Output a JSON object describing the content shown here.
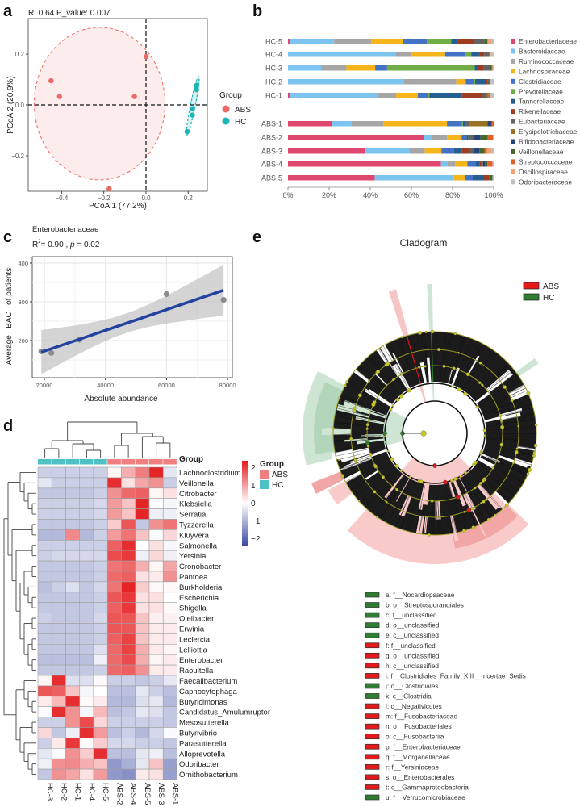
{
  "panels": {
    "a": "a",
    "b": "b",
    "c": "c",
    "d": "d",
    "e": "e"
  },
  "chart_data": [
    {
      "id": "a",
      "type": "scatter",
      "title": "R: 0.64   P_value: 0.007",
      "xlabel": "PCoA 1 (77.2%)",
      "ylabel": "PCoA 2 (20.9%)",
      "xticks": [
        -0.4,
        -0.2,
        0.0,
        0.2
      ],
      "yticks": [
        -0.2,
        0.0,
        0.2
      ],
      "xtick_labels": [
        "−0.4",
        "−0.2",
        "0.0",
        "0.2"
      ],
      "ytick_labels": [
        "−0.2",
        "0.0",
        "0.2"
      ],
      "legend_title": "Group",
      "legend_position": "right",
      "series": [
        {
          "name": "ABS",
          "color": "#ec6a63",
          "points": [
            [
              -0.45,
              0.095
            ],
            [
              -0.41,
              0.033
            ],
            [
              -0.055,
              0.033
            ],
            [
              0.0,
              0.19
            ],
            [
              -0.175,
              -0.33
            ]
          ],
          "ellipse": {
            "cx": -0.22,
            "cy": 0.005,
            "rx": 0.31,
            "ry": 0.3
          }
        },
        {
          "name": "HC",
          "color": "#1cb5b5",
          "points": [
            [
              0.195,
              -0.105
            ],
            [
              0.22,
              -0.04
            ],
            [
              0.22,
              -0.015
            ],
            [
              0.24,
              0.06
            ],
            [
              0.24,
              0.077
            ]
          ]
        }
      ]
    },
    {
      "id": "b",
      "type": "bar",
      "orientation": "horizontal-stacked-percent",
      "categories": [
        "HC-5",
        "HC-4",
        "HC-3",
        "HC-2",
        "HC-1",
        "ABS-1",
        "ABS-2",
        "ABS-3",
        "ABS-4",
        "ABS-5"
      ],
      "xtick_labels": [
        "0%",
        "20%",
        "40%",
        "60%",
        "80%",
        "100%"
      ],
      "legend_position": "right",
      "series": [
        {
          "name": "Enterobacteriaceae",
          "color": "#e0476e",
          "values": [
            1,
            0,
            0,
            0,
            0.9,
            21.3,
            66.3,
            37.3,
            74.4,
            42.2
          ]
        },
        {
          "name": "Bacteroidaceae",
          "color": "#7cc4ef",
          "values": [
            21.4,
            52.3,
            16.1,
            56.2,
            42.7,
            9.4,
            3.7,
            21.7,
            3,
            38.3
          ]
        },
        {
          "name": "Ruminococcaceae",
          "color": "#a6a6a6",
          "values": [
            18,
            7.6,
            12.3,
            25.6,
            9,
            15.6,
            7.3,
            7.5,
            3.8,
            0
          ]
        },
        {
          "name": "Lachnospiraceae",
          "color": "#f5b51b",
          "values": [
            15.3,
            16.5,
            14,
            4.6,
            10.5,
            31,
            7.1,
            8.1,
            6,
            5.6
          ]
        },
        {
          "name": "Clostridiaceae",
          "color": "#4472c4",
          "values": [
            11.8,
            10,
            5.8,
            3.9,
            4.8,
            7.2,
            2.4,
            5.4,
            3.9,
            3.7
          ]
        },
        {
          "name": "Prevotellaceae",
          "color": "#70ad47",
          "values": [
            11.9,
            2.7,
            42.6,
            0.7,
            0.8,
            0.5,
            0,
            0.6,
            0,
            0
          ]
        },
        {
          "name": "Tannerellaceae",
          "color": "#255e91",
          "values": [
            3.3,
            3.8,
            1.6,
            5.4,
            15.7,
            0.9,
            0.8,
            3.8,
            2.1,
            5.5
          ]
        },
        {
          "name": "Rikenellaceae",
          "color": "#9e3d1f",
          "values": [
            7.6,
            2.5,
            2.5,
            0.8,
            10.3,
            0,
            0,
            3.7,
            0.7,
            2.4
          ]
        },
        {
          "name": "Eubacteriaceae",
          "color": "#636363",
          "values": [
            5.1,
            2.6,
            3.4,
            1.3,
            2,
            2.5,
            2.7,
            2.2,
            0.9,
            0
          ]
        },
        {
          "name": "Erysipelotrichaceae",
          "color": "#997323",
          "values": [
            0,
            0,
            0,
            0,
            0.8,
            8.6,
            0,
            0,
            0,
            0
          ]
        },
        {
          "name": "Bifidobacteriaceae",
          "color": "#264478",
          "values": [
            0,
            0,
            0,
            0,
            0,
            2,
            3.3,
            2.7,
            0.9,
            0
          ]
        },
        {
          "name": "Veillonellaceae",
          "color": "#43682b",
          "values": [
            1.6,
            0,
            0.8,
            0,
            0,
            0,
            3.5,
            2.5,
            1.3,
            1.7
          ]
        },
        {
          "name": "Streptococcaceae",
          "color": "#e0622a",
          "values": [
            0,
            0,
            0.3,
            0,
            0.7,
            1,
            2.6,
            1.2,
            2.4,
            0
          ]
        },
        {
          "name": "Oscillospiraceae",
          "color": "#f4a070",
          "values": [
            2,
            0.7,
            0,
            0,
            0,
            0,
            0,
            2.4,
            0,
            0
          ]
        },
        {
          "name": "Odoribacteraceae",
          "color": "#c0c0c0",
          "values": [
            1,
            1.3,
            0.8,
            1.5,
            1.8,
            0,
            0.4,
            1,
            0.6,
            0.6
          ]
        }
      ]
    },
    {
      "id": "c",
      "type": "scatter",
      "title": "Enterobacteriaceae",
      "stat_r2": "R",
      "stat_r2_sup": "2",
      "stat_text": "= 0.90 , ",
      "stat_p": "p",
      "stat_p_text": " = 0.02",
      "xlabel": "Absolute abundance",
      "ylabel": "Average   BAC   of patients",
      "xticks": [
        20000,
        40000,
        60000,
        80000
      ],
      "yticks": [
        200,
        300,
        400
      ],
      "xtick_labels": [
        "20000",
        "40000",
        "60000",
        "80000"
      ],
      "ytick_labels": [
        "200",
        "300",
        "400"
      ],
      "grid": true,
      "points": [
        [
          19000,
          172
        ],
        [
          22300,
          168
        ],
        [
          31500,
          202
        ],
        [
          60000,
          320
        ],
        [
          78700,
          305
        ]
      ],
      "fit": {
        "x": [
          19000,
          78700
        ],
        "y": [
          170,
          330
        ],
        "color": "#2342a0"
      },
      "ci": {
        "x": [
          19000,
          25000,
          31000,
          37000,
          43000,
          49000,
          55000,
          61000,
          67000,
          73000,
          78700
        ],
        "lower": [
          113,
          139,
          164,
          188,
          209,
          225,
          237,
          245,
          252,
          259,
          264
        ],
        "upper": [
          227,
          233,
          240,
          249,
          260,
          276,
          296,
          320,
          345,
          371,
          396
        ]
      }
    },
    {
      "id": "d",
      "type": "heatmap",
      "columns": [
        "HC-3",
        "HC-2",
        "HC-1",
        "HC-4",
        "HC-5",
        "ABS-2",
        "ABS-4",
        "ABS-5",
        "ABS-3",
        "ABS-1"
      ],
      "column_groups": [
        "HC",
        "HC",
        "HC",
        "HC",
        "HC",
        "ABS",
        "ABS",
        "ABS",
        "ABS",
        "ABS"
      ],
      "annotation_label": "Group",
      "legend_title": "Group",
      "groups": [
        {
          "name": "ABS",
          "color": "#f08080"
        },
        {
          "name": "HC",
          "color": "#4fc0c4"
        }
      ],
      "scale_ticks": [
        2,
        1,
        0,
        -1,
        -2
      ],
      "scale_tick_labels": [
        "2",
        "1",
        "0",
        "−1",
        "−2"
      ],
      "colors": {
        "low": "#3a4ba0",
        "mid": "#ffffff",
        "high": "#e41a1c"
      },
      "rows": [
        "Lachnoclostridium",
        "Veillonella",
        "Citrobacter",
        "Klebsiella",
        "Serratia",
        "Tyzzerella",
        "Kluyvera",
        "Salmonella",
        "Yersinia",
        "Cronobacter",
        "Pantoea",
        "Burkholderia",
        "Escherichia",
        "Shigella",
        "Oleibacter",
        "Erwinia",
        "Leclercia",
        "Lelliottia",
        "Enterobacter",
        "Raoultella",
        "Faecalibacterium",
        "Capnocytophaga",
        "Butyricimonas",
        "Candidatus_Amulumruptor",
        "Mesosutterella",
        "Butyrivibrio",
        "Parasutterella",
        "Alloprevotella",
        "Odoribacter",
        "Ornithobacterium"
      ],
      "values": [
        [
          -0.6,
          -0.6,
          -0.6,
          -0.6,
          -0.6,
          0.1,
          0.8,
          1.3,
          2.2,
          -0.3
        ],
        [
          -0.3,
          -0.6,
          -0.6,
          -0.6,
          -0.6,
          2.1,
          0.3,
          0.9,
          1.1,
          -0.6
        ],
        [
          -0.7,
          -0.7,
          -0.7,
          -0.7,
          -0.6,
          1.1,
          1.5,
          1.6,
          0.1,
          0.3
        ],
        [
          -0.6,
          -0.6,
          -0.6,
          -0.6,
          -0.5,
          1.0,
          0.6,
          2.2,
          0,
          -0.1
        ],
        [
          -0.6,
          -0.6,
          -0.6,
          -0.6,
          -0.5,
          1.0,
          0.6,
          2.2,
          -0.2,
          -0.2
        ],
        [
          -0.7,
          -0.7,
          -0.7,
          -0.7,
          -0.6,
          0.5,
          1.7,
          -0.7,
          1.1,
          1.4
        ],
        [
          -0.9,
          -0.9,
          1.2,
          -0.9,
          -0.6,
          1.0,
          1.4,
          0.6,
          -0.05,
          0.4
        ],
        [
          -0.6,
          -0.6,
          -0.6,
          -0.6,
          -0.6,
          1.6,
          2.1,
          0,
          0.3,
          -0.1
        ],
        [
          -0.6,
          -0.5,
          -0.5,
          -0.5,
          -0.5,
          1.8,
          2.0,
          -0.2,
          0.4,
          -0.2
        ],
        [
          -0.7,
          -0.7,
          -0.7,
          -0.7,
          -0.6,
          1.4,
          1.5,
          0.8,
          0.1,
          0.9
        ],
        [
          -0.7,
          -0.7,
          -0.7,
          -0.7,
          -0.6,
          1.5,
          1.6,
          0.3,
          0.2,
          1.1
        ],
        [
          -0.8,
          -0.6,
          -0.4,
          -0.7,
          -0.5,
          1.4,
          2.2,
          0.5,
          0.05,
          0.05
        ],
        [
          -0.7,
          -0.7,
          -0.7,
          -0.7,
          -0.6,
          1.7,
          2.0,
          0.3,
          0.3,
          0
        ],
        [
          -0.7,
          -0.7,
          -0.7,
          -0.7,
          -0.6,
          1.6,
          2.0,
          0.3,
          0.3,
          0.05
        ],
        [
          -0.6,
          -0.7,
          -0.7,
          -0.7,
          -0.5,
          1.7,
          1.7,
          0.6,
          0.15,
          0.15
        ],
        [
          -0.7,
          -0.7,
          -0.7,
          -0.7,
          -0.6,
          1.7,
          1.7,
          0.6,
          0.2,
          0.2
        ],
        [
          -0.7,
          -0.7,
          -0.7,
          -0.7,
          -0.6,
          1.6,
          1.9,
          0.6,
          0.2,
          0.2
        ],
        [
          -0.7,
          -0.7,
          -0.7,
          -0.7,
          -0.4,
          1.5,
          1.9,
          0.8,
          0.2,
          0.1
        ],
        [
          -0.8,
          -0.8,
          -0.8,
          -0.8,
          -0.2,
          1.5,
          1.8,
          0.8,
          0.1,
          0.2
        ],
        [
          -0.7,
          -0.7,
          -0.7,
          -0.7,
          -0.6,
          1.5,
          1.6,
          1.1,
          0.2,
          0.2
        ],
        [
          0.1,
          2.1,
          -0.4,
          -0.4,
          0.05,
          -0.6,
          -0.6,
          -0.7,
          -0.6,
          -0.3
        ],
        [
          1.7,
          1.6,
          0.6,
          -0.1,
          0,
          -0.8,
          -0.8,
          -0.3,
          -0.6,
          -0.8
        ],
        [
          0.2,
          0.7,
          2.1,
          0.05,
          0.2,
          -0.9,
          -0.9,
          -0.4,
          -0.3,
          -0.9
        ],
        [
          -0.05,
          2.1,
          1.1,
          -0.1,
          0.7,
          -0.8,
          -0.7,
          -0.3,
          -0.4,
          -0.7
        ],
        [
          -0.6,
          -0.6,
          1.1,
          1.8,
          0.4,
          -0.6,
          -0.6,
          -0.6,
          -0.6,
          -0.7
        ],
        [
          0.4,
          -0.7,
          -0.2,
          2.1,
          1.0,
          -0.8,
          -0.6,
          -0.9,
          -0.5,
          -0.05
        ],
        [
          -0.6,
          0.2,
          2.0,
          -0.05,
          0.5,
          -0.5,
          -0.5,
          -0.6,
          -0.6,
          -0.7
        ],
        [
          -0.3,
          -0.05,
          1.1,
          0.5,
          2.1,
          -0.8,
          -0.8,
          -0.3,
          -0.2,
          -0.8
        ],
        [
          -0.2,
          1.1,
          1.2,
          0.8,
          0.6,
          -1.3,
          -1.0,
          -0.3,
          0.6,
          -1.2
        ],
        [
          -0.7,
          1.1,
          0.9,
          0.3,
          1.0,
          -1.3,
          -1.4,
          0.2,
          0.3,
          -1.2
        ]
      ]
    },
    {
      "id": "e",
      "type": "cladogram",
      "title": "Cladogram",
      "legend": [
        {
          "name": "ABS",
          "color": "#e31a1c"
        },
        {
          "name": "HC",
          "color": "#2e7d32"
        }
      ],
      "clades": [
        {
          "label": "a: f__Nocardiopsaceae",
          "group": "HC"
        },
        {
          "label": "b: o__Streptosporangiales",
          "group": "HC"
        },
        {
          "label": "c: f__unclassified",
          "group": "HC"
        },
        {
          "label": "d: o__unclassified",
          "group": "HC"
        },
        {
          "label": "e: c__unclassified",
          "group": "HC"
        },
        {
          "label": "f: f__unclassified",
          "group": "ABS"
        },
        {
          "label": "g: o__unclassified",
          "group": "ABS"
        },
        {
          "label": "h: c__unclassified",
          "group": "ABS"
        },
        {
          "label": "i: f__Clostridiales_Family_XIII__Incertae_Sedis",
          "group": "ABS"
        },
        {
          "label": "j: o__Clostridiales",
          "group": "HC"
        },
        {
          "label": "k: c__Clostridia",
          "group": "HC"
        },
        {
          "label": "l: c__Negativicutes",
          "group": "ABS"
        },
        {
          "label": "m: f__Fusobacteriaceae",
          "group": "ABS"
        },
        {
          "label": "n: o__Fusobacteriales",
          "group": "ABS"
        },
        {
          "label": "o: c__Fusobacteriia",
          "group": "ABS"
        },
        {
          "label": "p: f__Enterobacteriaceae",
          "group": "ABS"
        },
        {
          "label": "q: f__Morganellaceae",
          "group": "ABS"
        },
        {
          "label": "r: f__Yersiniaceae",
          "group": "ABS"
        },
        {
          "label": "s: o__Enterobacterales",
          "group": "ABS"
        },
        {
          "label": "t: c__Gammaproteobacteria",
          "group": "ABS"
        },
        {
          "label": "u: f__Verrucomicrobiaceae",
          "group": "HC"
        }
      ]
    }
  ]
}
